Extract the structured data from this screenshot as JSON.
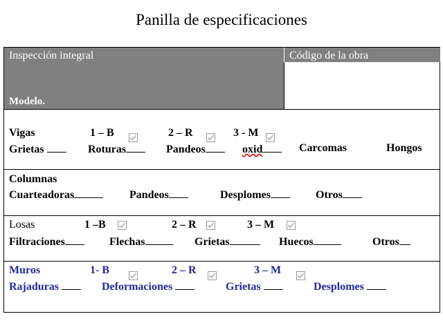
{
  "title": "Panilla de especificaciones",
  "header": {
    "left": "Inspección integral",
    "model": "Modelo.",
    "right": "Código de la obra"
  },
  "sections": [
    {
      "name": "Vigas",
      "grades": [
        "1 – B",
        "2 – R",
        "3 - M"
      ],
      "defects": [
        "Grietas",
        "Roturas",
        "Pandeos",
        "oxid",
        "Carcomas",
        "Hongos"
      ]
    },
    {
      "name": "Columnas",
      "defects": [
        "Cuarteadoras",
        "Pandeos",
        "Desplomes",
        "Otros"
      ]
    },
    {
      "name": "Losas",
      "grades": [
        "1 –B",
        "2 – R",
        "3 – M"
      ],
      "defects": [
        "Filtraciones",
        "Flechas",
        "Grietas",
        "Huecos",
        "Otros"
      ]
    },
    {
      "name": "Muros",
      "grades": [
        "1- B",
        "2 – R",
        "3 – M"
      ],
      "defects": [
        "Rajaduras",
        "Deformaciones",
        "Grietas",
        "Desplomes"
      ]
    }
  ]
}
